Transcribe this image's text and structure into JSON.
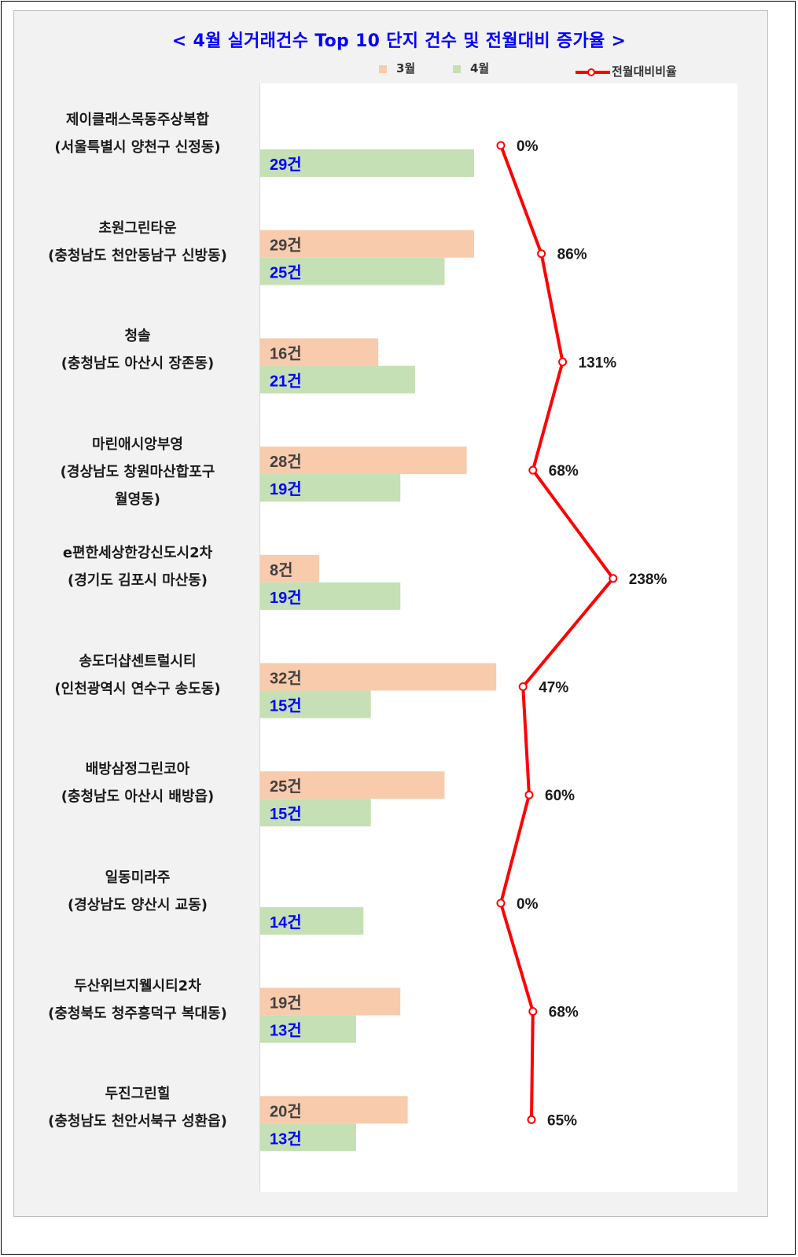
{
  "chart_data": {
    "type": "bar",
    "title": "< 4월 실거래건수 Top 10 단지 건수 및 전월대비 증가율 >",
    "orientation": "horizontal",
    "categories": [
      [
        "제이클래스목동주상복합",
        "(서울특별시 양천구 신정동)"
      ],
      [
        "초원그린타운",
        "(충청남도 천안동남구 신방동)"
      ],
      [
        "청솔",
        "(충청남도 아산시 장존동)"
      ],
      [
        "마린애시앙부영",
        "(경상남도 창원마산합포구",
        "월영동)"
      ],
      [
        "e편한세상한강신도시2차",
        "(경기도 김포시 마산동)"
      ],
      [
        "송도더샵센트럴시티",
        "(인천광역시 연수구 송도동)"
      ],
      [
        "배방삼정그린코아",
        "(충청남도 아산시 배방읍)"
      ],
      [
        "일동미라주",
        "(경상남도 양산시 교동)"
      ],
      [
        "두산위브지웰시티2차",
        "(충청북도 청주흥덕구 복대동)"
      ],
      [
        "두진그린힐",
        "(충청남도 천안서북구 성환읍)"
      ]
    ],
    "series": [
      {
        "name": "3월",
        "color": "#f8cbad",
        "label_color": "#404040",
        "values": [
          null,
          29,
          16,
          28,
          8,
          32,
          25,
          null,
          19,
          20
        ],
        "labels": [
          "",
          "29건",
          "16건",
          "28건",
          "8건",
          "32건",
          "25건",
          "",
          "19건",
          "20건"
        ]
      },
      {
        "name": "4월",
        "color": "#c5e0b4",
        "label_color": "#0000ff",
        "values": [
          29,
          25,
          21,
          19,
          19,
          15,
          15,
          14,
          13,
          13
        ],
        "labels": [
          "29건",
          "25건",
          "21건",
          "19건",
          "19건",
          "15건",
          "15건",
          "14건",
          "13건",
          "13건"
        ]
      },
      {
        "name": "전월대비비율",
        "type": "line",
        "color": "#ff0000",
        "values": [
          0,
          86,
          131,
          68,
          238,
          47,
          60,
          0,
          68,
          65
        ],
        "labels": [
          "0%",
          "86%",
          "131%",
          "68%",
          "238%",
          "47%",
          "60%",
          "0%",
          "68%",
          "65%"
        ]
      }
    ],
    "legend_position": "top",
    "grid": false
  }
}
